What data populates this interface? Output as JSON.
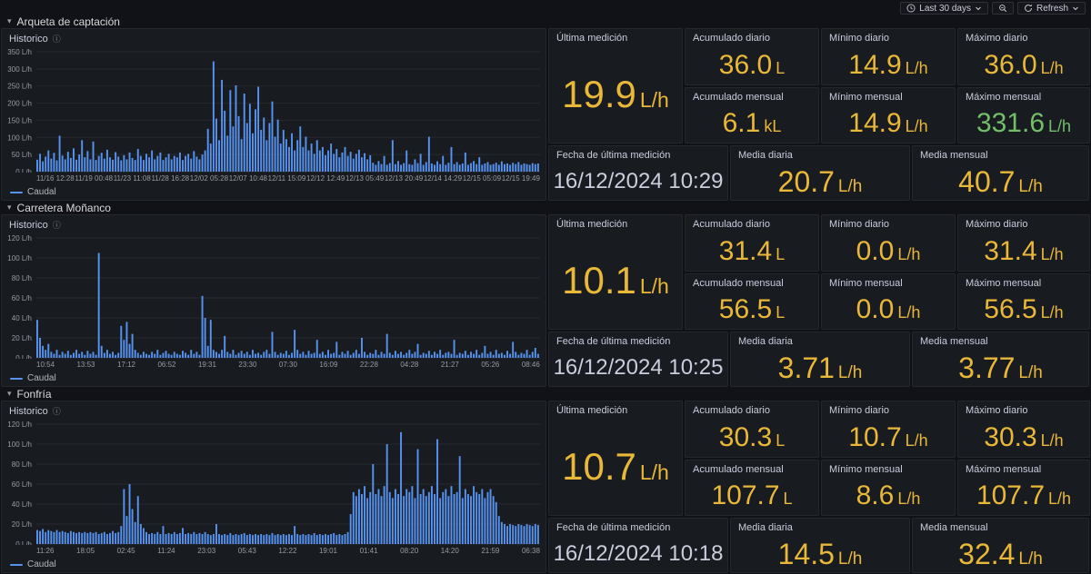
{
  "toolbar": {
    "time_label": "Last 30 days",
    "refresh_label": "Refresh"
  },
  "colors": {
    "series_blue": "#5794F2",
    "yellow": "#EAB839",
    "green": "#73BF69",
    "date_text": "#CCCCDC"
  },
  "sections": [
    {
      "title": "Arqueta de captación",
      "chart": {
        "type": "bar",
        "title": "Historico",
        "legend": "Caudal",
        "ylabel_unit": "L/h",
        "ymax": 350,
        "yticks": [
          "350 L/h",
          "300 L/h",
          "250 L/h",
          "200 L/h",
          "150 L/h",
          "100 L/h",
          "50 L/h",
          "0 L/h"
        ],
        "xlabels": [
          "11/16 12:28",
          "11/19 00:48",
          "11/23 11:08",
          "11/28 16:28",
          "12/02 05:28",
          "12/07 10:48",
          "12/11 15:09",
          "12/12 12:49",
          "12/13 05:49",
          "12/13 20:49",
          "12/14 14:29",
          "12/15 05:09",
          "12/15 19:49"
        ],
        "values": [
          35,
          52,
          30,
          44,
          62,
          38,
          55,
          33,
          105,
          47,
          36,
          58,
          40,
          68,
          35,
          50,
          92,
          42,
          60,
          36,
          88,
          34,
          46,
          55,
          38,
          64,
          42,
          35,
          57,
          44,
          33,
          48,
          36,
          56,
          40,
          34,
          66,
          46,
          34,
          52,
          42,
          62,
          36,
          46,
          56,
          34,
          42,
          52,
          36,
          46,
          42,
          56,
          34,
          46,
          52,
          38,
          60,
          44,
          36,
          50,
          62,
          125,
          82,
          322,
          155,
          92,
          268,
          178,
          105,
          238,
          132,
          252,
          162,
          95,
          228,
          142,
          198,
          112,
          182,
          248,
          122,
          158,
          92,
          142,
          205,
          102,
          152,
          82,
          122,
          95,
          72,
          112,
          62,
          92,
          132,
          72,
          102,
          62,
          82,
          52,
          92,
          62,
          72,
          48,
          62,
          82,
          52,
          66,
          42,
          56,
          72,
          46,
          58,
          38,
          52,
          64,
          42,
          54,
          36,
          48,
          26,
          20,
          31,
          22,
          46,
          20,
          25,
          92,
          22,
          31,
          20,
          25,
          62,
          22,
          20,
          36,
          25,
          52,
          20,
          28,
          102,
          24,
          20,
          30,
          22,
          46,
          20,
          26,
          72,
          22,
          28,
          20,
          24,
          56,
          20,
          25,
          31,
          22,
          42,
          20,
          24,
          28,
          20,
          22,
          26,
          20,
          30,
          22,
          24,
          20,
          26,
          22,
          28,
          20,
          24,
          22,
          20,
          25,
          22,
          24
        ]
      },
      "panels": {
        "ultima": {
          "label": "Última medición",
          "value": "19.9",
          "unit": "L/h",
          "color": "#EAB839"
        },
        "acum_d": {
          "label": "Acumulado diario",
          "value": "36.0",
          "unit": "L",
          "color": "#EAB839"
        },
        "min_d": {
          "label": "Mínimo diario",
          "value": "14.9",
          "unit": "L/h",
          "color": "#EAB839"
        },
        "max_d": {
          "label": "Máximo diario",
          "value": "36.0",
          "unit": "L/h",
          "color": "#EAB839"
        },
        "acum_m": {
          "label": "Acumulado mensual",
          "value": "6.1",
          "unit": "kL",
          "color": "#EAB839"
        },
        "min_m": {
          "label": "Mínimo mensual",
          "value": "14.9",
          "unit": "L/h",
          "color": "#EAB839"
        },
        "max_m": {
          "label": "Máximo mensual",
          "value": "331.6",
          "unit": "L/h",
          "color": "#73BF69"
        },
        "fecha": {
          "label": "Fecha de última medición",
          "value": "16/12/2024 10:29",
          "unit": "",
          "color": "#CCCCDC"
        },
        "media_d": {
          "label": "Media diaria",
          "value": "20.7",
          "unit": "L/h",
          "color": "#EAB839"
        },
        "media_m": {
          "label": "Media mensual",
          "value": "40.7",
          "unit": "L/h",
          "color": "#EAB839"
        }
      }
    },
    {
      "title": "Carretera Moñanco",
      "chart": {
        "type": "bar",
        "title": "Historico",
        "legend": "Caudal",
        "ylabel_unit": "L/h",
        "ymax": 120,
        "yticks": [
          "120 L/h",
          "100 L/h",
          "80 L/h",
          "60 L/h",
          "40 L/h",
          "20 L/h",
          "0 L/h"
        ],
        "xlabels": [
          "10:54",
          "13:53",
          "17:12",
          "06:52",
          "19:31",
          "23:30",
          "07:30",
          "16:09",
          "22:28",
          "04:28",
          "21:27",
          "05:26",
          "08:46"
        ],
        "values": [
          38,
          20,
          12,
          8,
          14,
          6,
          4,
          8,
          3,
          6,
          4,
          7,
          3,
          5,
          8,
          4,
          6,
          3,
          7,
          4,
          6,
          3,
          105,
          12,
          5,
          8,
          4,
          6,
          3,
          5,
          32,
          18,
          36,
          14,
          24,
          8,
          5,
          3,
          6,
          4,
          3,
          6,
          4,
          8,
          3,
          5,
          7,
          4,
          3,
          6,
          4,
          3,
          7,
          5,
          3,
          8,
          4,
          6,
          3,
          62,
          40,
          12,
          38,
          8,
          6,
          4,
          8,
          22,
          6,
          4,
          8,
          3,
          5,
          7,
          4,
          6,
          3,
          8,
          4,
          5,
          3,
          6,
          8,
          4,
          26,
          6,
          3,
          5,
          4,
          7,
          3,
          5,
          28,
          8,
          4,
          6,
          3,
          7,
          4,
          5,
          18,
          4,
          6,
          3,
          8,
          4,
          5,
          16,
          3,
          6,
          4,
          7,
          3,
          5,
          8,
          4,
          20,
          6,
          3,
          5,
          4,
          8,
          3,
          6,
          4,
          24,
          5,
          3,
          7,
          4,
          6,
          3,
          5,
          8,
          4,
          6,
          14,
          3,
          5,
          4,
          7,
          3,
          6,
          4,
          8,
          3,
          5,
          6,
          4,
          18,
          3,
          5,
          4,
          7,
          3,
          6,
          4,
          8,
          3,
          5,
          12,
          4,
          6,
          3,
          8,
          4,
          5,
          3,
          7,
          4,
          16,
          6,
          3,
          5,
          4,
          8,
          3,
          6,
          10,
          4
        ]
      },
      "panels": {
        "ultima": {
          "label": "Última medición",
          "value": "10.1",
          "unit": "L/h",
          "color": "#EAB839"
        },
        "acum_d": {
          "label": "Acumulado diario",
          "value": "31.4",
          "unit": "L",
          "color": "#EAB839"
        },
        "min_d": {
          "label": "Mínimo diario",
          "value": "0.0",
          "unit": "L/h",
          "color": "#EAB839"
        },
        "max_d": {
          "label": "Máximo diario",
          "value": "31.4",
          "unit": "L/h",
          "color": "#EAB839"
        },
        "acum_m": {
          "label": "Acumulado mensual",
          "value": "56.5",
          "unit": "L",
          "color": "#EAB839"
        },
        "min_m": {
          "label": "Mínimo mensual",
          "value": "0.0",
          "unit": "L/h",
          "color": "#EAB839"
        },
        "max_m": {
          "label": "Máximo mensual",
          "value": "56.5",
          "unit": "L/h",
          "color": "#EAB839"
        },
        "fecha": {
          "label": "Fecha de última medición",
          "value": "16/12/2024 10:25",
          "unit": "",
          "color": "#CCCCDC"
        },
        "media_d": {
          "label": "Media diaria",
          "value": "3.71",
          "unit": "L/h",
          "color": "#EAB839"
        },
        "media_m": {
          "label": "Media mensual",
          "value": "3.77",
          "unit": "L/h",
          "color": "#EAB839"
        }
      }
    },
    {
      "title": "Fonfría",
      "chart": {
        "type": "bar",
        "title": "Historico",
        "legend": "Caudal",
        "ylabel_unit": "L/h",
        "ymax": 120,
        "yticks": [
          "120 L/h",
          "100 L/h",
          "80 L/h",
          "60 L/h",
          "40 L/h",
          "20 L/h",
          "0 L/h"
        ],
        "xlabels": [
          "11:26",
          "18:05",
          "02:45",
          "11:24",
          "23:03",
          "05:43",
          "12:22",
          "19:01",
          "01:41",
          "08:20",
          "14:20",
          "21:59",
          "06:38"
        ],
        "values": [
          14,
          13,
          15,
          12,
          14,
          13,
          12,
          14,
          12,
          13,
          12,
          11,
          13,
          12,
          11,
          12,
          11,
          12,
          11,
          12,
          11,
          12,
          10,
          11,
          12,
          10,
          11,
          13,
          11,
          12,
          18,
          55,
          28,
          60,
          35,
          22,
          48,
          20,
          16,
          12,
          10,
          11,
          10,
          12,
          10,
          18,
          10,
          11,
          10,
          12,
          10,
          11,
          16,
          10,
          11,
          10,
          12,
          10,
          11,
          10,
          12,
          10,
          9,
          10,
          20,
          10,
          9,
          10,
          9,
          11,
          9,
          10,
          9,
          10,
          11,
          9,
          10,
          9,
          10,
          9,
          10,
          9,
          10,
          9,
          11,
          9,
          10,
          9,
          10,
          9,
          10,
          9,
          18,
          10,
          9,
          10,
          9,
          10,
          9,
          11,
          9,
          10,
          9,
          10,
          9,
          10,
          11,
          9,
          10,
          9,
          10,
          12,
          30,
          52,
          48,
          55,
          50,
          58,
          46,
          52,
          80,
          50,
          55,
          48,
          58,
          100,
          52,
          46,
          55,
          50,
          112,
          48,
          55,
          52,
          58,
          46,
          95,
          50,
          55,
          48,
          52,
          58,
          50,
          105,
          46,
          52,
          55,
          48,
          58,
          50,
          52,
          88,
          46,
          55,
          50,
          48,
          58,
          52,
          50,
          55,
          46,
          52,
          55,
          48,
          42,
          28,
          22,
          20,
          18,
          20,
          19,
          18,
          20,
          19,
          18,
          20,
          19,
          18,
          20,
          19
        ]
      },
      "panels": {
        "ultima": {
          "label": "Última medición",
          "value": "10.7",
          "unit": "L/h",
          "color": "#EAB839"
        },
        "acum_d": {
          "label": "Acumulado diario",
          "value": "30.3",
          "unit": "L",
          "color": "#EAB839"
        },
        "min_d": {
          "label": "Mínimo diario",
          "value": "10.7",
          "unit": "L/h",
          "color": "#EAB839"
        },
        "max_d": {
          "label": "Máximo diario",
          "value": "30.3",
          "unit": "L/h",
          "color": "#EAB839"
        },
        "acum_m": {
          "label": "Acumulado mensual",
          "value": "107.7",
          "unit": "L",
          "color": "#EAB839"
        },
        "min_m": {
          "label": "Mínimo mensual",
          "value": "8.6",
          "unit": "L/h",
          "color": "#EAB839"
        },
        "max_m": {
          "label": "Máximo mensual",
          "value": "107.7",
          "unit": "L/h",
          "color": "#EAB839"
        },
        "fecha": {
          "label": "Fecha de última medición",
          "value": "16/12/2024 10:18",
          "unit": "",
          "color": "#CCCCDC"
        },
        "media_d": {
          "label": "Media diaria",
          "value": "14.5",
          "unit": "L/h",
          "color": "#EAB839"
        },
        "media_m": {
          "label": "Media mensual",
          "value": "32.4",
          "unit": "L/h",
          "color": "#EAB839"
        }
      }
    }
  ]
}
